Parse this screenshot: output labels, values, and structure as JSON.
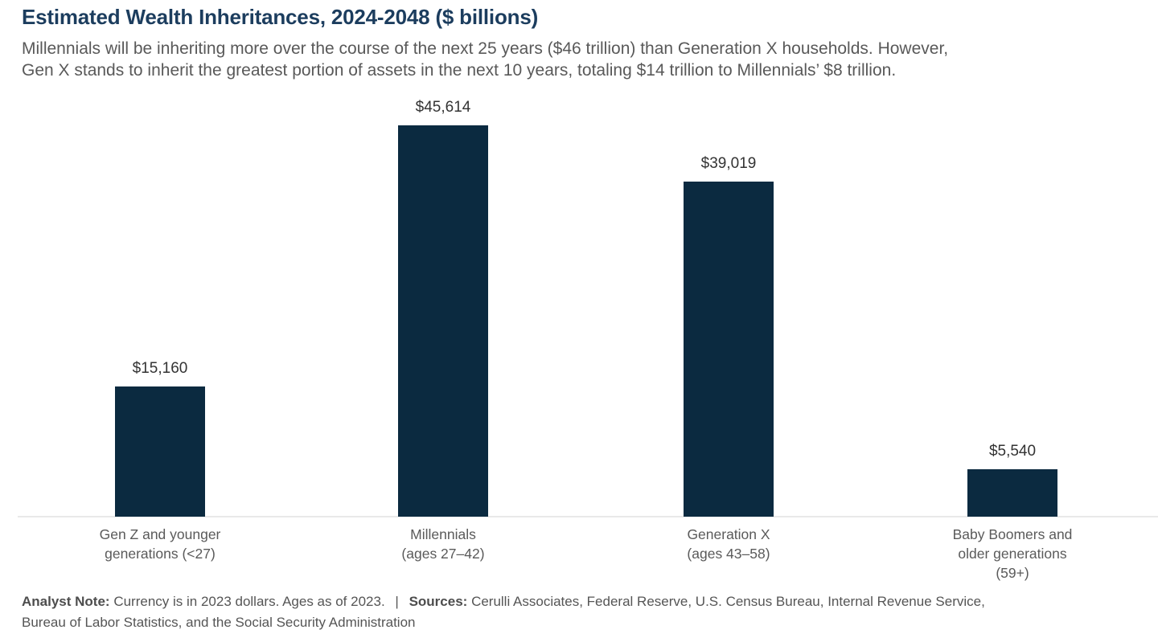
{
  "header": {
    "title": "Estimated Wealth Inheritances, 2024-2048 ($ billions)",
    "subtitle_lines": [
      "Millennials will be inheriting more over the course of the next 25 years ($46 trillion) than Generation X households. However,",
      "Gen X stands to inherit the greatest portion of assets in the next 10 years, totaling $14 trillion to Millennials’ $8 trillion."
    ]
  },
  "chart_data": {
    "type": "bar",
    "title": "Estimated Wealth Inheritances, 2024-2048 ($ billions)",
    "unit": "$ billions",
    "categories": [
      "Gen Z and younger generations (<27)",
      "Millennials (ages 27–42)",
      "Generation X (ages 43–58)",
      "Baby Boomers and older generations (59+)"
    ],
    "category_lines": [
      [
        "Gen Z and younger",
        "generations (<27)"
      ],
      [
        "Millennials",
        "(ages 27–42)"
      ],
      [
        "Generation X",
        "(ages 43–58)"
      ],
      [
        "Baby Boomers and",
        "older generations",
        "(59+)"
      ]
    ],
    "values": [
      15160,
      45614,
      39019,
      5540
    ],
    "value_labels": [
      "$15,160",
      "$45,614",
      "$39,019",
      "$5,540"
    ],
    "ylim": [
      0,
      48000
    ],
    "grid": false,
    "legend": false,
    "data_labels": true,
    "bar_color": "#0b2a40",
    "baseline_color": "#e9e9e9"
  },
  "footer": {
    "analyst_note_label": "Analyst Note:",
    "analyst_note_text": "Currency is in 2023 dollars. Ages as of 2023.",
    "separator": "|",
    "sources_label": "Sources:",
    "sources_text_line1": "Cerulli Associates, Federal Reserve, U.S. Census Bureau, Internal Revenue Service,",
    "sources_text_line2": "Bureau of Labor Statistics, and the Social Security Administration"
  },
  "colors": {
    "title_text": "#1c3d5e",
    "subtitle_text": "#595959",
    "value_label_text": "#333333",
    "category_label_text": "#5a5a5a",
    "bar_fill": "#0b2a40",
    "axis_line": "#e9e9e9"
  }
}
